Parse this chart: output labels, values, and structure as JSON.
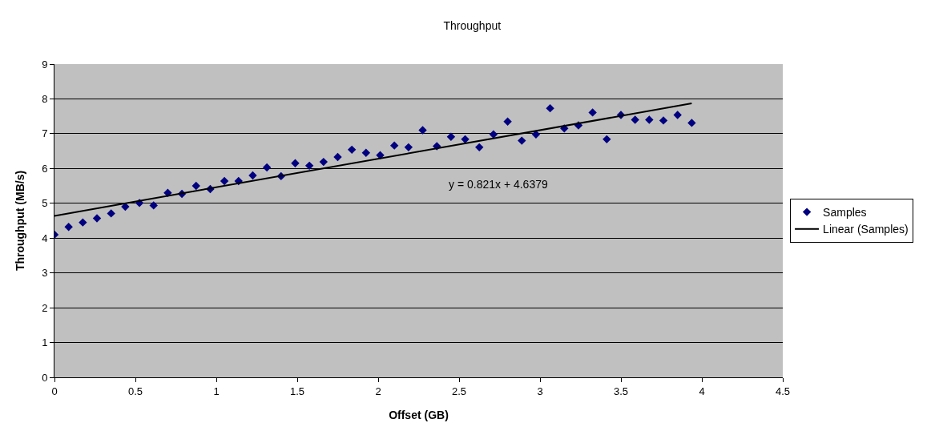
{
  "chart_data": {
    "type": "scatter",
    "title": "Throughput",
    "xlabel": "Offset (GB)",
    "ylabel": "Throughput (MB/s)",
    "annotations": [
      "y = 0.821x + 4.6379"
    ],
    "x": [
      0,
      0.0875,
      0.175,
      0.2625,
      0.35,
      0.4375,
      0.525,
      0.6125,
      0.7,
      0.7875,
      0.875,
      0.9625,
      1.05,
      1.1375,
      1.225,
      1.3125,
      1.4,
      1.4875,
      1.575,
      1.6625,
      1.75,
      1.8375,
      1.925,
      2.0125,
      2.1,
      2.1875,
      2.275,
      2.3625,
      2.45,
      2.5375,
      2.625,
      2.7125,
      2.8,
      2.8875,
      2.975,
      3.0625,
      3.15,
      3.2375,
      3.325,
      3.4125,
      3.5,
      3.5875,
      3.675,
      3.7625,
      3.85,
      3.9375
    ],
    "series": [
      {
        "name": "Samples",
        "color": "#000080",
        "marker": "diamond",
        "values": [
          4.1,
          4.32,
          4.45,
          4.57,
          4.71,
          4.9,
          5.01,
          4.94,
          5.3,
          5.27,
          5.5,
          5.41,
          5.64,
          5.64,
          5.8,
          6.03,
          5.78,
          6.15,
          6.08,
          6.19,
          6.33,
          6.54,
          6.45,
          6.38,
          6.66,
          6.61,
          7.1,
          6.64,
          6.91,
          6.84,
          6.61,
          6.98,
          7.35,
          6.8,
          6.98,
          7.73,
          7.15,
          7.24,
          7.61,
          6.84,
          7.54,
          7.4,
          7.4,
          7.38,
          7.54,
          7.31
        ]
      },
      {
        "name": "Linear (Samples)",
        "type": "line",
        "color": "#000000",
        "x": [
          0,
          3.9375
        ],
        "values": [
          4.64,
          7.87
        ],
        "marker": "none"
      }
    ],
    "xlim": [
      0,
      4.5
    ],
    "xticks": [
      0,
      0.5,
      1,
      1.5,
      2,
      2.5,
      3,
      3.5,
      4,
      4.5
    ],
    "ylim": [
      0,
      9
    ],
    "yticks": [
      0,
      1,
      2,
      3,
      4,
      5,
      6,
      7,
      8,
      9
    ],
    "grid": "y",
    "legend": "right"
  }
}
